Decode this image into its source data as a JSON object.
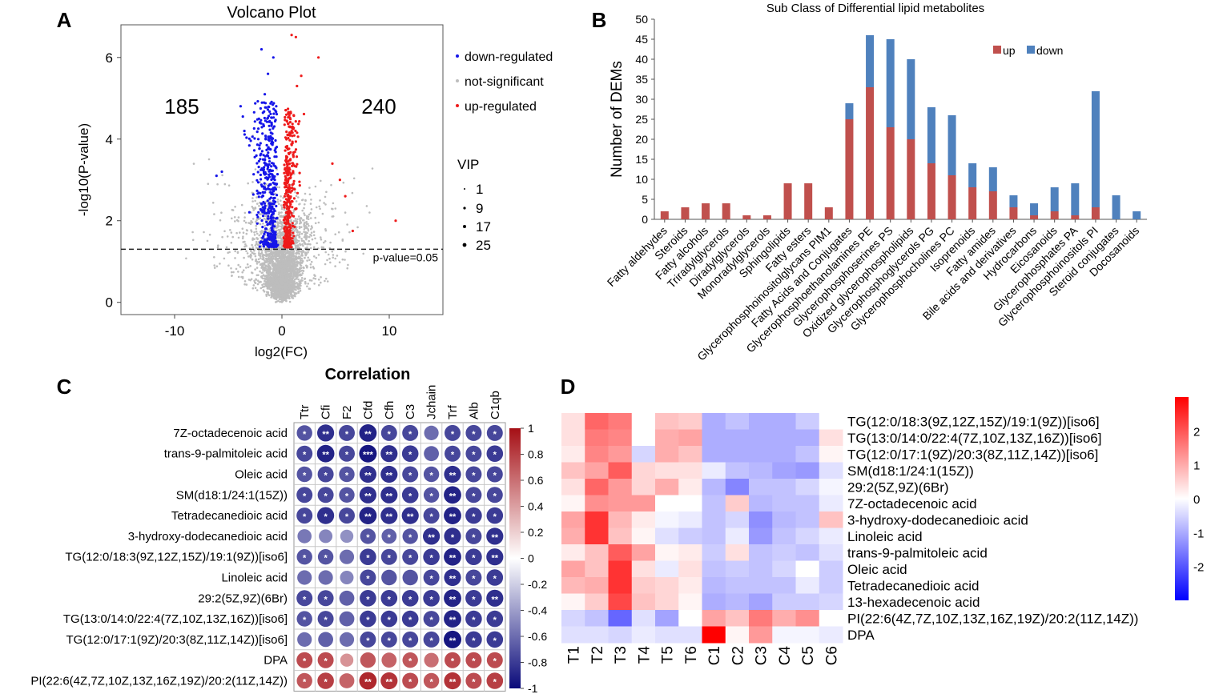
{
  "panels": {
    "a": "A",
    "b": "B",
    "c": "C",
    "d": "D"
  },
  "chart_data": [
    {
      "type": "scatter",
      "title": "Volcano Plot",
      "xlabel": "log2(FC)",
      "ylabel": "-log10(P-value)",
      "xlim": [
        -15,
        15
      ],
      "ylim": [
        -0.3,
        6.8
      ],
      "xticks": [
        "-10",
        "0",
        "10"
      ],
      "yticks": [
        "0",
        "2",
        "4",
        "6"
      ],
      "down_count": "185",
      "up_count": "240",
      "threshold_label": "p-value=0.05",
      "threshold": 1.3,
      "legend": [
        "down-regulated",
        "not-significant",
        "up-regulated"
      ],
      "legend_colors": [
        "#1515e8",
        "#bdbdbd",
        "#ee1b1b"
      ],
      "vip_title": "VIP",
      "vip_sizes": [
        "1",
        "9",
        "17",
        "25"
      ],
      "highlight_points": {
        "down": [
          [
            -1.9,
            6.2
          ],
          [
            -0.8,
            6.0
          ],
          [
            -1.3,
            5.6
          ],
          [
            -1.6,
            5.1
          ],
          [
            -3.5,
            4.2
          ],
          [
            -2.2,
            4.0
          ],
          [
            -5.6,
            3.2
          ],
          [
            -6.1,
            3.1
          ]
        ],
        "up": [
          [
            0.9,
            6.55
          ],
          [
            1.3,
            6.5
          ],
          [
            3.4,
            6.0
          ],
          [
            1.8,
            5.55
          ],
          [
            1.4,
            5.3
          ],
          [
            4.7,
            3.4
          ],
          [
            5.4,
            3.0
          ],
          [
            10.6,
            2.0
          ],
          [
            5.9,
            2.6
          ],
          [
            6.6,
            1.75
          ]
        ]
      }
    },
    {
      "type": "bar",
      "title": "Sub Class of Differential lipid metabolites",
      "ylabel": "Number of DEMs",
      "ylim": [
        0,
        50
      ],
      "yticks": [
        "0",
        "5",
        "10",
        "15",
        "20",
        "25",
        "30",
        "35",
        "40",
        "45",
        "50"
      ],
      "legend": [
        "up",
        "down"
      ],
      "colors": {
        "up": "#c0504d",
        "down": "#4f81bd"
      },
      "categories": [
        "Fatty aldehydes",
        "Steroids",
        "Fatty alcohols",
        "Triradylglycerols",
        "Diradylglycerols",
        "Monoradylglycerols",
        "Sphingolipids",
        "Fatty esters",
        "Glycerophosphoinositolglycans PIM1",
        "Fatty Acids and Conjugates",
        "Glycerophosphoethanolamines PE",
        "Glycerophosphoserines PS",
        "Oxidized glycerophospholipids",
        "Glycerophosphoglycerols PG",
        "Glycerophosphocholines PC",
        "Isoprenoids",
        "Fatty amides",
        "Bile acids and derivatives",
        "Hydrocarbons",
        "Eicosanoids",
        "Glycerophosphates PA",
        "Glycerophosphoinositols PI",
        "Steroid conjugates",
        "Docosanoids"
      ],
      "series": [
        {
          "name": "up",
          "values": [
            2,
            3,
            4,
            4,
            1,
            1,
            9,
            9,
            3,
            25,
            33,
            23,
            20,
            14,
            11,
            8,
            7,
            3,
            1,
            2,
            1,
            3,
            0,
            0
          ]
        },
        {
          "name": "down",
          "values": [
            0,
            0,
            0,
            0,
            0,
            0,
            0,
            0,
            0,
            4,
            13,
            22,
            20,
            14,
            15,
            6,
            6,
            3,
            3,
            6,
            8,
            29,
            6,
            2
          ]
        }
      ]
    },
    {
      "type": "heatmap",
      "title": "Correlation",
      "columns": [
        "Ttr",
        "Cfi",
        "F2",
        "Cfd",
        "Cfh",
        "C3",
        "Jchain",
        "Trf",
        "Alb",
        "C1qb"
      ],
      "rows": [
        "7Z-octadecenoic acid",
        "trans-9-palmitoleic acid",
        "Oleic acid",
        "SM(d18:1/24:1(15Z))",
        "Tetradecanedioic acid",
        "3-hydroxy-dodecanedioic acid",
        "TG(12:0/18:3(9Z,12Z,15Z)/19:1(9Z))[iso6]",
        "Linoleic acid",
        "29:2(5Z,9Z)(6Br)",
        "TG(13:0/14:0/22:4(7Z,10Z,13Z,16Z))[iso6]",
        "TG(12:0/17:1(9Z)/20:3(8Z,11Z,14Z))[iso6]",
        "DPA",
        "PI(22:6(4Z,7Z,10Z,13Z,16Z,19Z)/20:2(11Z,14Z))"
      ],
      "values": [
        [
          -0.7,
          -0.85,
          -0.75,
          -0.9,
          -0.75,
          -0.75,
          -0.6,
          -0.75,
          -0.75,
          -0.75
        ],
        [
          -0.75,
          -0.9,
          -0.75,
          -0.95,
          -0.85,
          -0.8,
          -0.65,
          -0.75,
          -0.75,
          -0.8
        ],
        [
          -0.7,
          -0.75,
          -0.7,
          -0.85,
          -0.85,
          -0.75,
          -0.7,
          -0.85,
          -0.75,
          -0.75
        ],
        [
          -0.75,
          -0.75,
          -0.7,
          -0.85,
          -0.85,
          -0.8,
          -0.7,
          -0.9,
          -0.75,
          -0.75
        ],
        [
          -0.75,
          -0.85,
          -0.75,
          -0.9,
          -0.85,
          -0.85,
          -0.75,
          -0.9,
          -0.8,
          -0.8
        ],
        [
          -0.55,
          -0.5,
          -0.45,
          -0.7,
          -0.65,
          -0.7,
          -0.85,
          -0.85,
          -0.75,
          -0.85
        ],
        [
          -0.7,
          -0.7,
          -0.6,
          -0.8,
          -0.75,
          -0.75,
          -0.8,
          -0.9,
          -0.8,
          -0.85
        ],
        [
          -0.6,
          -0.6,
          -0.5,
          -0.75,
          -0.7,
          -0.7,
          -0.75,
          -0.85,
          -0.75,
          -0.8
        ],
        [
          -0.75,
          -0.75,
          -0.65,
          -0.8,
          -0.8,
          -0.8,
          -0.8,
          -0.9,
          -0.8,
          -0.85
        ],
        [
          -0.7,
          -0.75,
          -0.65,
          -0.8,
          -0.8,
          -0.8,
          -0.75,
          -0.9,
          -0.8,
          -0.8
        ],
        [
          -0.6,
          -0.65,
          -0.6,
          -0.75,
          -0.75,
          -0.75,
          -0.75,
          -0.95,
          -0.8,
          -0.8
        ],
        [
          0.75,
          0.75,
          0.45,
          0.7,
          0.65,
          0.7,
          0.6,
          0.75,
          0.75,
          0.75
        ],
        [
          0.7,
          0.8,
          0.65,
          0.9,
          0.85,
          0.75,
          0.7,
          0.85,
          0.75,
          0.8
        ]
      ],
      "stars": [
        [
          "*",
          "**",
          "*",
          "**",
          "*",
          "*",
          "",
          "*",
          "*",
          "*"
        ],
        [
          "*",
          "**",
          "*",
          "***",
          "**",
          "*",
          "",
          "*",
          "*",
          "*"
        ],
        [
          "*",
          "*",
          "*",
          "**",
          "**",
          "*",
          "*",
          "**",
          "*",
          "*"
        ],
        [
          "*",
          "*",
          "*",
          "**",
          "**",
          "*",
          "*",
          "**",
          "*",
          "*"
        ],
        [
          "*",
          "*",
          "*",
          "**",
          "**",
          "**",
          "*",
          "**",
          "*",
          "*"
        ],
        [
          "",
          "",
          "",
          "*",
          "*",
          "*",
          "**",
          "*",
          "*",
          "**"
        ],
        [
          "*",
          "*",
          "",
          "*",
          "*",
          "*",
          "*",
          "**",
          "*",
          "**"
        ],
        [
          "",
          "",
          "",
          "*",
          "",
          "",
          "*",
          "**",
          "*",
          "*"
        ],
        [
          "*",
          "*",
          "",
          "*",
          "*",
          "*",
          "*",
          "**",
          "*",
          "**"
        ],
        [
          "*",
          "*",
          "",
          "*",
          "*",
          "*",
          "*",
          "**",
          "*",
          "*"
        ],
        [
          "",
          "",
          "",
          "*",
          "*",
          "*",
          "*",
          "**",
          "*",
          "*"
        ],
        [
          "*",
          "*",
          "",
          "",
          "",
          "*",
          "",
          "*",
          "*",
          "*"
        ],
        [
          "*",
          "*",
          "",
          "**",
          "**",
          "*",
          "*",
          "**",
          "*",
          "*"
        ]
      ],
      "colorbar_ticks": [
        "1",
        "0.8",
        "0.6",
        "0.4",
        "0.2",
        "0",
        "-0.2",
        "-0.4",
        "-0.6",
        "-0.8",
        "-1"
      ],
      "colorbar_range": [
        -1,
        1
      ]
    },
    {
      "type": "heatmap",
      "columns": [
        "T1",
        "T2",
        "T3",
        "T4",
        "T5",
        "T6",
        "C1",
        "C2",
        "C3",
        "C4",
        "C5",
        "C6"
      ],
      "rows": [
        "TG(12:0/18:3(9Z,12Z,15Z)/19:1(9Z))[iso6]",
        "TG(13:0/14:0/22:4(7Z,10Z,13Z,16Z))[iso6]",
        "TG(12:0/17:1(9Z)/20:3(8Z,11Z,14Z))[iso6]",
        "SM(d18:1/24:1(15Z))",
        "29:2(5Z,9Z)(6Br)",
        "7Z-octadecenoic acid",
        "3-hydroxy-dodecanedioic acid",
        "Linoleic acid",
        "trans-9-palmitoleic acid",
        "Oleic acid",
        "Tetradecanedioic acid",
        "13-hexadecenoic acid",
        "PI(22:6(4Z,7Z,10Z,13Z,16Z,19Z)/20:2(11Z,14Z))",
        "DPA"
      ],
      "values": [
        [
          0.3,
          1.5,
          1.3,
          0.0,
          0.6,
          0.5,
          -0.8,
          -0.6,
          -0.8,
          -0.8,
          -0.5,
          0.0
        ],
        [
          0.3,
          1.3,
          1.2,
          0.0,
          0.8,
          0.9,
          -0.8,
          -0.8,
          -0.8,
          -0.8,
          -0.8,
          0.3
        ],
        [
          0.2,
          1.2,
          1.0,
          -0.4,
          0.8,
          0.6,
          -0.8,
          -0.8,
          -0.8,
          -0.8,
          -0.6,
          0.1
        ],
        [
          0.6,
          0.9,
          1.6,
          0.4,
          0.3,
          0.3,
          -0.2,
          -0.6,
          -0.7,
          -0.9,
          -1.0,
          -0.3
        ],
        [
          0.3,
          1.5,
          1.0,
          0.4,
          0.8,
          0.2,
          -0.7,
          -1.2,
          -0.6,
          -0.6,
          -0.4,
          -0.1
        ],
        [
          0.1,
          1.1,
          1.0,
          1.0,
          0.0,
          0.0,
          -0.6,
          0.5,
          -0.7,
          -0.6,
          -0.6,
          -0.2
        ],
        [
          0.9,
          2.0,
          0.7,
          0.2,
          -0.1,
          -0.2,
          -0.6,
          -0.4,
          -1.1,
          -0.7,
          -0.6,
          0.6
        ],
        [
          0.8,
          2.0,
          0.6,
          0.1,
          -0.3,
          -0.5,
          -0.6,
          -0.2,
          -1.0,
          -0.6,
          -0.4,
          -0.2
        ],
        [
          0.2,
          0.6,
          1.6,
          0.9,
          0.1,
          0.2,
          -0.5,
          0.3,
          -0.6,
          -0.5,
          -0.6,
          -0.3
        ],
        [
          0.9,
          0.6,
          2.0,
          0.3,
          -0.2,
          0.3,
          -0.6,
          -0.5,
          -0.6,
          -0.4,
          0.0,
          -0.5
        ],
        [
          0.7,
          0.8,
          2.0,
          0.5,
          0.4,
          0.2,
          -0.7,
          -0.6,
          -0.6,
          -0.6,
          -0.2,
          -0.5
        ],
        [
          0.1,
          0.5,
          1.8,
          0.6,
          0.4,
          0.1,
          -0.8,
          -0.7,
          -0.9,
          -0.5,
          -0.5,
          -0.4
        ],
        [
          -0.4,
          -0.6,
          -1.5,
          -0.3,
          -0.9,
          0.0,
          0.9,
          0.6,
          1.3,
          0.8,
          1.1,
          0.0
        ],
        [
          -0.3,
          -0.3,
          -0.4,
          -0.2,
          -0.3,
          -0.3,
          2.9,
          0.1,
          1.0,
          -0.1,
          -0.1,
          -0.2
        ]
      ],
      "colorbar_ticks": [
        "2",
        "1",
        "0",
        "-1",
        "-2"
      ],
      "colorbar_range": [
        -3,
        3
      ]
    }
  ]
}
